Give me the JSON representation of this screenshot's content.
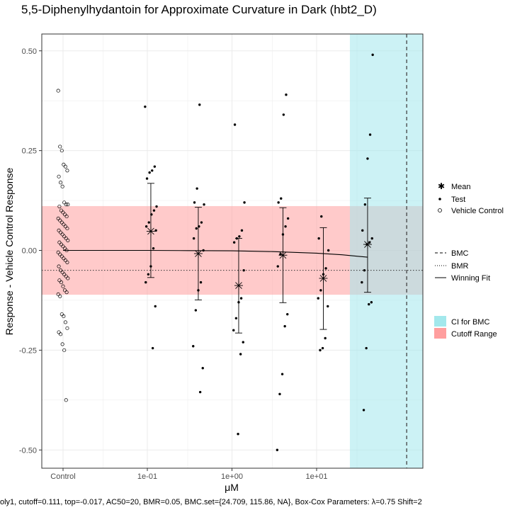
{
  "chart_data": {
    "type": "scatter",
    "title": "5,5-Diphenylhydantoin for Approximate Curvature in Dark (hbt2_D)",
    "xlabel": "μM",
    "ylabel": "Response - Vehicle Control Response",
    "ylim": [
      -0.54,
      0.54
    ],
    "xlim_log10": [
      -2.5,
      1.75
    ],
    "grid": true,
    "legend_placement": "right",
    "x_ticks": [
      {
        "label": "Control",
        "x": "control"
      },
      {
        "label": "1e-01",
        "x": 0.1
      },
      {
        "label": "1e+00",
        "x": 1
      },
      {
        "label": "1e+01",
        "x": 10
      }
    ],
    "y_ticks": [
      {
        "label": "0.50",
        "y": 0.5
      },
      {
        "label": "0.25",
        "y": 0.25
      },
      {
        "label": "0.00",
        "y": 0.0
      },
      {
        "label": "-0.25",
        "y": -0.25
      },
      {
        "label": "-0.50",
        "y": -0.5
      }
    ],
    "cutoff_range": [
      -0.111,
      0.111
    ],
    "bmr_line": -0.05,
    "bmc_ci": [
      24.709,
      115.86
    ],
    "bmc_line": 115.86,
    "colors": {
      "cutoff": "#ff9e9e",
      "ci": "#a3e8ec",
      "points": "#000000",
      "grid": "#ebebeb"
    },
    "vehicle_control": [
      0.4,
      0.26,
      0.25,
      0.215,
      0.21,
      0.2,
      0.185,
      0.17,
      0.16,
      0.12,
      0.115,
      0.115,
      0.11,
      0.1,
      0.095,
      0.09,
      0.085,
      0.08,
      0.075,
      0.07,
      0.065,
      0.06,
      0.055,
      0.05,
      0.045,
      0.04,
      0.035,
      0.03,
      0.025,
      0.02,
      0.015,
      0.01,
      0.005,
      0.0,
      -0.005,
      -0.01,
      -0.015,
      -0.02,
      -0.025,
      -0.03,
      -0.04,
      -0.05,
      -0.055,
      -0.06,
      -0.065,
      -0.07,
      -0.075,
      -0.08,
      -0.09,
      -0.1,
      -0.105,
      -0.11,
      -0.115,
      -0.16,
      -0.165,
      -0.18,
      -0.195,
      -0.205,
      -0.21,
      -0.235,
      -0.25,
      -0.375
    ],
    "test_points": [
      {
        "dose": 0.11,
        "values": [
          0.36,
          0.21,
          0.2,
          0.195,
          0.18,
          0.11,
          0.1,
          0.09,
          0.07,
          0.06,
          0.05,
          0.005,
          -0.04,
          -0.06,
          -0.08,
          -0.14,
          -0.245
        ]
      },
      {
        "dose": 0.4,
        "values": [
          0.365,
          0.155,
          0.12,
          0.115,
          0.07,
          0.06,
          0.055,
          0.03,
          0.0,
          -0.08,
          -0.1,
          -0.15,
          -0.24,
          -0.295,
          -0.355
        ]
      },
      {
        "dose": 1.2,
        "values": [
          0.315,
          0.12,
          0.05,
          0.035,
          0.03,
          0.02,
          -0.05,
          -0.12,
          -0.13,
          -0.17,
          -0.2,
          -0.23,
          -0.26,
          -0.46
        ]
      },
      {
        "dose": 4.0,
        "values": [
          0.39,
          0.34,
          0.13,
          0.12,
          0.08,
          0.06,
          0.04,
          -0.01,
          -0.04,
          -0.16,
          -0.19,
          -0.31,
          -0.36,
          -0.5
        ]
      },
      {
        "dose": 12.0,
        "values": [
          0.085,
          0.03,
          0.0,
          -0.045,
          -0.06,
          -0.1,
          -0.12,
          -0.14,
          -0.22,
          -0.245,
          -0.25
        ]
      },
      {
        "dose": 40.0,
        "values": [
          0.49,
          0.29,
          0.23,
          0.115,
          0.05,
          0.03,
          0.02,
          0.015,
          -0.05,
          -0.08,
          -0.13,
          -0.135,
          -0.245,
          -0.4
        ]
      }
    ],
    "means": [
      {
        "dose": 0.11,
        "mean": 0.048,
        "lower": -0.068,
        "upper": 0.168
      },
      {
        "dose": 0.4,
        "mean": -0.008,
        "lower": -0.124,
        "upper": 0.108
      },
      {
        "dose": 1.2,
        "mean": -0.088,
        "lower": -0.207,
        "upper": 0.03
      },
      {
        "dose": 4.0,
        "mean": -0.012,
        "lower": -0.131,
        "upper": 0.107
      },
      {
        "dose": 12.0,
        "mean": -0.07,
        "lower": -0.198,
        "upper": 0.057
      },
      {
        "dose": 40.0,
        "mean": 0.015,
        "lower": -0.105,
        "upper": 0.131
      }
    ],
    "fit": {
      "top": -0.017,
      "doses": [
        0.01,
        0.05,
        0.1,
        0.3,
        1,
        3,
        10,
        20,
        40
      ],
      "values": [
        0.0,
        0.0,
        0.0,
        -0.0005,
        -0.001,
        -0.003,
        -0.007,
        -0.011,
        -0.017
      ]
    }
  },
  "legend": {
    "mean": "Mean",
    "test": "Test",
    "vehicle": "Vehicle Control",
    "bmc": "BMC",
    "bmr": "BMR",
    "winning_fit": "Winning Fit",
    "ci_bmc": "CI for BMC",
    "cutoff_range": "Cutoff Range"
  },
  "footer": "oly1, cutoff=0.111, top=-0.017, AC50=20, BMR=0.05, BMC.set={24.709, 115.86, NA}, Box-Cox Parameters: λ=0.75 Shift=2"
}
